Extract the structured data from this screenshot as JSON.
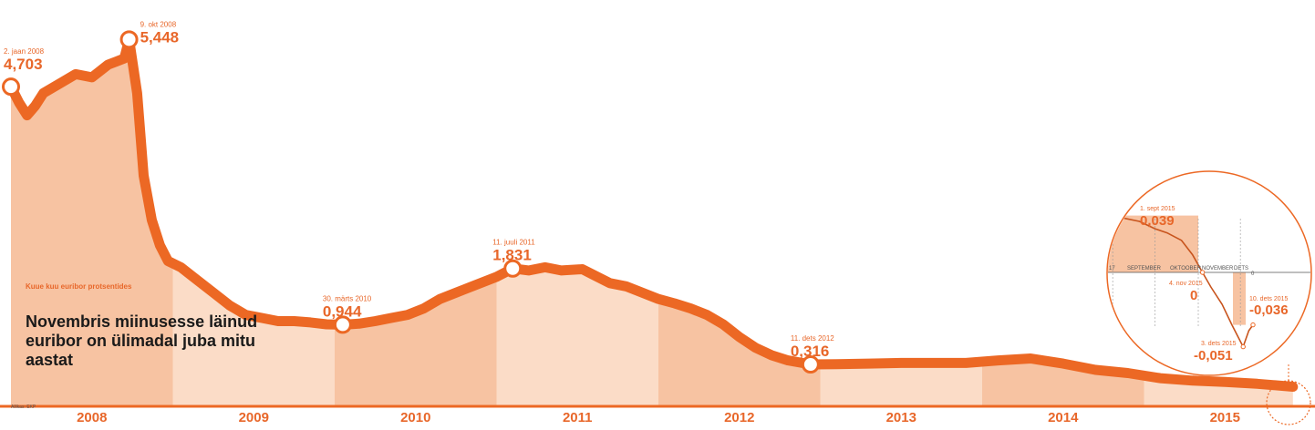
{
  "chart_data": {
    "type": "area",
    "title": "Novembris miinusesse läinud euribor on ülimadal juba mitu aastat",
    "subtitle": "Kuue kuu euribor protsentides",
    "source": "Allikas: EKP",
    "x_labels": [
      "2008",
      "2009",
      "2010",
      "2011",
      "2012",
      "2013",
      "2014",
      "2015"
    ],
    "ylim": [
      -0.1,
      5.6
    ],
    "colors": {
      "line": "#ec6824",
      "fill_dark": "#f7c3a2",
      "fill_light": "#fbdcc7",
      "marker": "#ffffff"
    },
    "series": [
      {
        "x": [
          2008.0,
          2008.05,
          2008.1,
          2008.15,
          2008.2,
          2008.3,
          2008.4,
          2008.5,
          2008.6,
          2008.65,
          2008.7,
          2008.73,
          2008.78,
          2008.82,
          2008.87,
          2008.92,
          2008.97,
          2009.05,
          2009.15,
          2009.25,
          2009.35,
          2009.45,
          2009.55,
          2009.65,
          2009.75,
          2009.85,
          2009.95,
          2010.05,
          2010.15,
          2010.25,
          2010.35,
          2010.45,
          2010.55,
          2010.65,
          2010.75,
          2010.85,
          2011.0,
          2011.1,
          2011.2,
          2011.3,
          2011.4,
          2011.53,
          2011.6,
          2011.7,
          2011.8,
          2011.9,
          2012.0,
          2012.1,
          2012.2,
          2012.3,
          2012.4,
          2012.5,
          2012.6,
          2012.7,
          2012.8,
          2012.94,
          2013.1,
          2013.3,
          2013.5,
          2013.7,
          2013.9,
          2014.1,
          2014.3,
          2014.5,
          2014.7,
          2014.9,
          2015.1,
          2015.3,
          2015.5,
          2015.7,
          2015.92
        ],
        "y": [
          4.703,
          4.45,
          4.25,
          4.4,
          4.6,
          4.75,
          4.9,
          4.85,
          5.05,
          5.1,
          5.15,
          5.448,
          4.6,
          3.3,
          2.6,
          2.2,
          1.95,
          1.85,
          1.65,
          1.45,
          1.25,
          1.1,
          1.05,
          1.0,
          1.0,
          0.98,
          0.95,
          0.944,
          0.96,
          1.0,
          1.05,
          1.1,
          1.2,
          1.35,
          1.45,
          1.55,
          1.7,
          1.831,
          1.8,
          1.85,
          1.8,
          1.82,
          1.73,
          1.6,
          1.55,
          1.45,
          1.35,
          1.28,
          1.2,
          1.1,
          0.95,
          0.75,
          0.58,
          0.46,
          0.38,
          0.316,
          0.32,
          0.33,
          0.34,
          0.34,
          0.34,
          0.38,
          0.41,
          0.33,
          0.23,
          0.18,
          0.1,
          0.06,
          0.04,
          0.01,
          -0.036
        ]
      }
    ],
    "annotations": [
      {
        "date": "2. jaan 2008",
        "value": "4,703",
        "x": 2008.0,
        "y": 4.703
      },
      {
        "date": "9. okt 2008",
        "value": "5,448",
        "x": 2008.73,
        "y": 5.448
      },
      {
        "date": "30. märts 2010",
        "value": "0,944",
        "x": 2010.05,
        "y": 0.944
      },
      {
        "date": "11. juuli 2011",
        "value": "1,831",
        "x": 2011.1,
        "y": 1.831
      },
      {
        "date": "11. dets 2012",
        "value": "0,316",
        "x": 2012.94,
        "y": 0.316
      }
    ],
    "inset": {
      "type": "line",
      "months": [
        "17",
        "SEPTEMBER",
        "OKTOOBER",
        "NOVEMBER",
        "DETS"
      ],
      "zero_label": "0",
      "series": [
        {
          "x": [
            "2015-08-28",
            "2015-09-01",
            "2015-09-10",
            "2015-09-20",
            "2015-10-01",
            "2015-10-10",
            "2015-10-20",
            "2015-10-28",
            "2015-11-04",
            "2015-11-10",
            "2015-11-18",
            "2015-11-25",
            "2015-12-03",
            "2015-12-07",
            "2015-12-10"
          ],
          "y": [
            0.036,
            0.039,
            0.037,
            0.035,
            0.03,
            0.027,
            0.022,
            0.012,
            0.0,
            -0.01,
            -0.022,
            -0.036,
            -0.051,
            -0.04,
            -0.036
          ]
        }
      ],
      "annotations": [
        {
          "date": "1. sept 2015",
          "value": "0,039"
        },
        {
          "date": "4. nov 2015",
          "value": "0"
        },
        {
          "date": "3. dets 2015",
          "value": "-0,051"
        },
        {
          "date": "10. dets 2015",
          "value": "-0,036"
        }
      ]
    }
  }
}
